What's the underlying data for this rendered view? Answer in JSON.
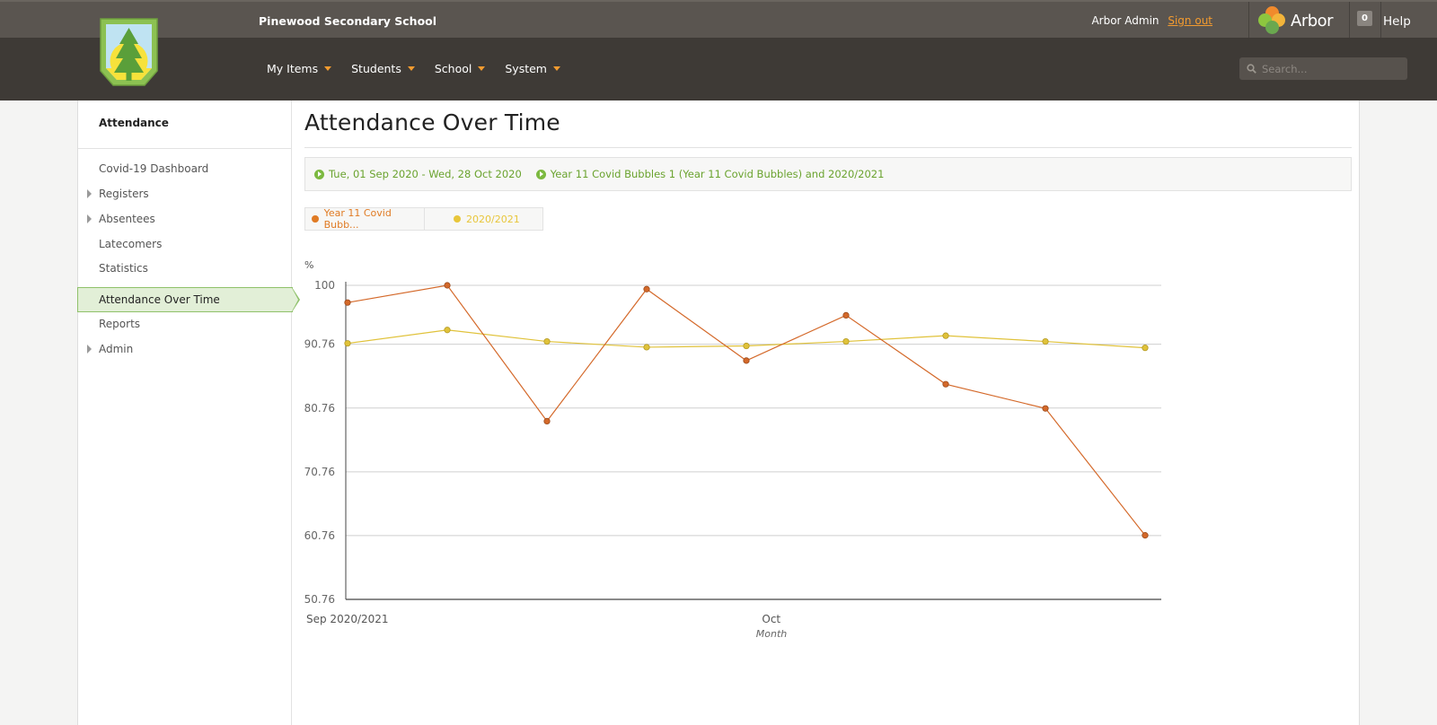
{
  "header": {
    "school_name": "Pinewood Secondary School",
    "user_name": "Arbor Admin",
    "sign_out": "Sign out",
    "brand": "Arbor",
    "notification_count": "0",
    "help": "Help"
  },
  "nav": {
    "items": [
      "My Items",
      "Students",
      "School",
      "System"
    ],
    "search_placeholder": "Search..."
  },
  "sidebar": {
    "heading": "Attendance",
    "items": [
      {
        "label": "Covid-19 Dashboard",
        "expandable": false,
        "active": false
      },
      {
        "label": "Registers",
        "expandable": true,
        "active": false
      },
      {
        "label": "Absentees",
        "expandable": true,
        "active": false
      },
      {
        "label": "Latecomers",
        "expandable": false,
        "active": false
      },
      {
        "label": "Statistics",
        "expandable": false,
        "active": false
      },
      {
        "label": "Attendance Over Time",
        "expandable": false,
        "active": true
      },
      {
        "label": "Reports",
        "expandable": false,
        "active": false
      },
      {
        "label": "Admin",
        "expandable": true,
        "active": false
      }
    ]
  },
  "main": {
    "title": "Attendance Over Time",
    "filters": [
      "Tue, 01 Sep 2020 - Wed, 28 Oct 2020",
      "Year 11 Covid Bubbles 1 (Year 11 Covid Bubbles) and 2020/2021"
    ],
    "legend": [
      {
        "label": "Year 11 Covid Bubb...",
        "color": "#e07b24"
      },
      {
        "label": "2020/2021",
        "color": "#e8c63a"
      }
    ]
  },
  "colors": {
    "accent_orange": "#f39b2f",
    "accent_green": "#7cb940",
    "series1": "#d4692a",
    "series2": "#e0c23a"
  },
  "chart_data": {
    "type": "line",
    "ylabel": "%",
    "xlabel": "Month",
    "ylim": [
      50.76,
      100
    ],
    "yticks": [
      100,
      90.76,
      80.76,
      70.76,
      60.76,
      50.76
    ],
    "xticks": [
      {
        "label": "Sep 2020/2021",
        "index": 0
      },
      {
        "label": "Oct",
        "index": 4.25
      }
    ],
    "grid": true,
    "series": [
      {
        "name": "Year 11 Covid Bubb...",
        "color": "#d4692a",
        "values": [
          97.3,
          100,
          78.7,
          99.4,
          88.2,
          95.3,
          84.5,
          80.7,
          60.8
        ]
      },
      {
        "name": "2020/2021",
        "color": "#e0c23a",
        "values": [
          90.9,
          93.0,
          91.2,
          90.3,
          90.5,
          91.2,
          92.1,
          91.2,
          90.2
        ]
      }
    ]
  }
}
